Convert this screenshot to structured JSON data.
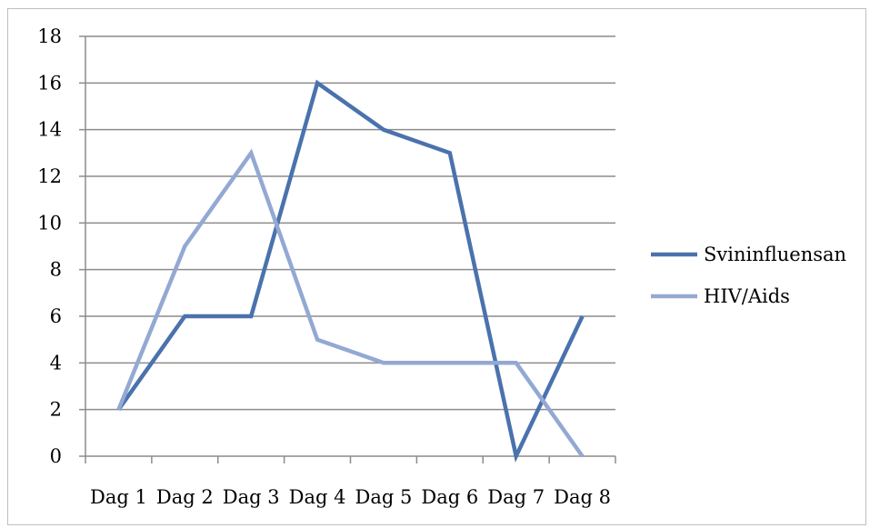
{
  "chart_data": {
    "type": "line",
    "title": "",
    "xlabel": "",
    "ylabel": "",
    "categories": [
      "Dag 1",
      "Dag 2",
      "Dag 3",
      "Dag 4",
      "Dag 5",
      "Dag 6",
      "Dag 7",
      "Dag 8"
    ],
    "ylim": [
      0,
      18
    ],
    "yticks": [
      0,
      2,
      4,
      6,
      8,
      10,
      12,
      14,
      16,
      18
    ],
    "grid": true,
    "legend_position": "right",
    "series": [
      {
        "name": "Svininfluensan",
        "color": "#4a72ad",
        "values": [
          2,
          6,
          6,
          16,
          14,
          13,
          0,
          6
        ]
      },
      {
        "name": "HIV/Aids",
        "color": "#93a9d3",
        "values": [
          2,
          9,
          13,
          5,
          4,
          4,
          4,
          0
        ]
      }
    ]
  }
}
